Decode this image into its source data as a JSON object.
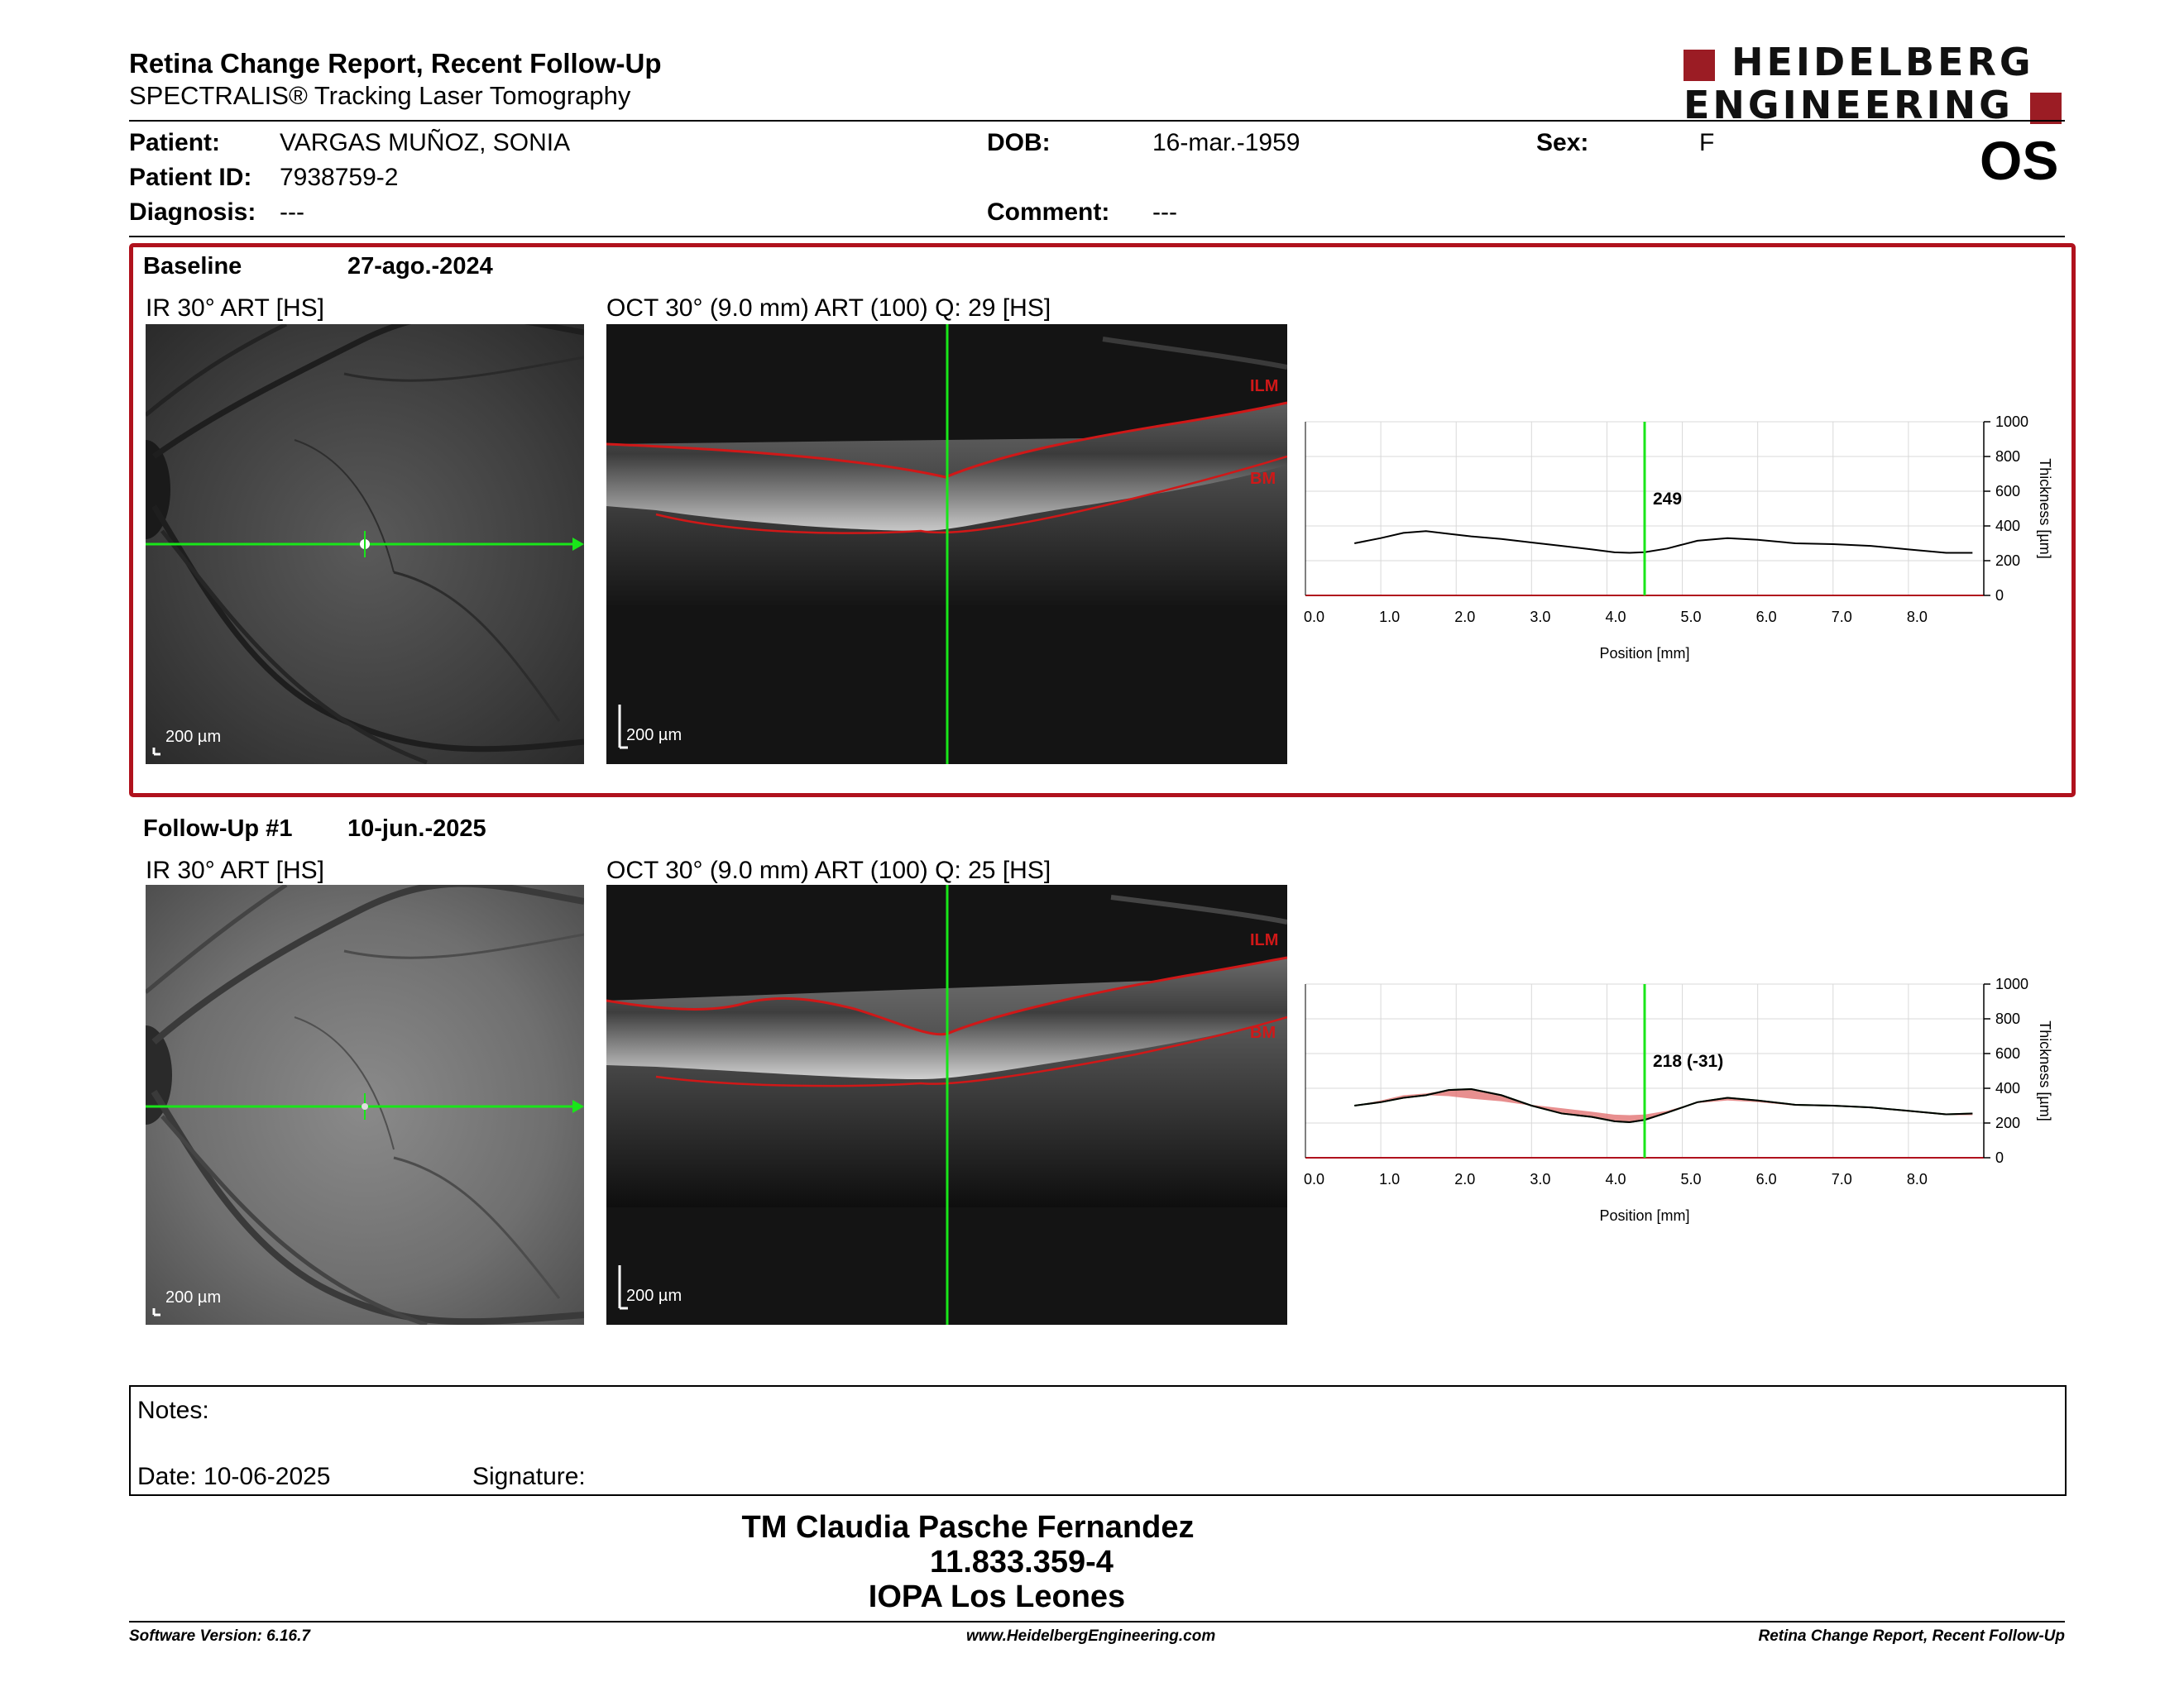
{
  "header": {
    "title": "Retina Change Report, Recent Follow-Up",
    "subtitle": "SPECTRALIS® Tracking Laser Tomography",
    "logo_line1": "HEIDELBERG",
    "logo_line2": "ENGINEERING",
    "eye": "OS"
  },
  "patient": {
    "patient_label": "Patient:",
    "patient_value": "VARGAS MUÑOZ, SONIA",
    "id_label": "Patient ID:",
    "id_value": "7938759-2",
    "diagnosis_label": "Diagnosis:",
    "diagnosis_value": "---",
    "dob_label": "DOB:",
    "dob_value": "16-mar.-1959",
    "comment_label": "Comment:",
    "comment_value": "---",
    "sex_label": "Sex:",
    "sex_value": "F"
  },
  "colors": {
    "accent_red": "#b0121d",
    "scan_green": "#19e619",
    "segmentation_red": "#d01818"
  },
  "baseline": {
    "label": "Baseline",
    "date": "27-ago.-2024",
    "ir_caption": "IR 30° ART [HS]",
    "oct_caption": "OCT 30° (9.0 mm) ART (100) Q: 29 [HS]",
    "ir_scale": "200 µm",
    "oct_scale": "200 µm",
    "ilm_label": "ILM",
    "bm_label": "BM",
    "marker_value": "249"
  },
  "followup": {
    "label": "Follow-Up #1",
    "date": "10-jun.-2025",
    "ir_caption": "IR 30° ART [HS]",
    "oct_caption": "OCT 30° (9.0 mm) ART (100) Q: 25 [HS]",
    "ir_scale": "200 µm",
    "oct_scale": "200 µm",
    "ilm_label": "ILM",
    "bm_label": "BM",
    "marker_value": "218 (-31)"
  },
  "chart_data": [
    {
      "type": "line",
      "xlabel": "Position [mm]",
      "ylabel": "Thickness [µm]",
      "xlim": [
        0,
        9
      ],
      "ylim": [
        0,
        1000
      ],
      "x_ticks": [
        "0.0",
        "1.0",
        "2.0",
        "3.0",
        "4.0",
        "5.0",
        "6.0",
        "7.0",
        "8.0"
      ],
      "y_ticks": [
        "0",
        "200",
        "400",
        "600",
        "800",
        "1000"
      ],
      "marker_x": 4.5,
      "marker_label": "249",
      "grid": true,
      "x": [
        0.65,
        1.0,
        1.3,
        1.6,
        1.9,
        2.2,
        2.6,
        3.0,
        3.4,
        3.8,
        4.1,
        4.3,
        4.5,
        4.8,
        5.2,
        5.6,
        6.0,
        6.5,
        7.0,
        7.5,
        8.0,
        8.5,
        8.85
      ],
      "series": [
        {
          "values": [
            300,
            330,
            360,
            370,
            355,
            340,
            325,
            305,
            285,
            265,
            248,
            245,
            249,
            270,
            315,
            330,
            320,
            300,
            295,
            285,
            265,
            245,
            245
          ]
        }
      ]
    },
    {
      "type": "area",
      "xlabel": "Position [mm]",
      "ylabel": "Thickness [µm]",
      "xlim": [
        0,
        9
      ],
      "ylim": [
        0,
        1000
      ],
      "x_ticks": [
        "0.0",
        "1.0",
        "2.0",
        "3.0",
        "4.0",
        "5.0",
        "6.0",
        "7.0",
        "8.0"
      ],
      "y_ticks": [
        "0",
        "200",
        "400",
        "600",
        "800",
        "1000"
      ],
      "marker_x": 4.5,
      "marker_label": "218 (-31)",
      "grid": true,
      "x": [
        0.65,
        1.0,
        1.3,
        1.6,
        1.9,
        2.2,
        2.6,
        3.0,
        3.4,
        3.8,
        4.1,
        4.3,
        4.5,
        4.8,
        5.2,
        5.6,
        6.0,
        6.5,
        7.0,
        7.5,
        8.0,
        8.5,
        8.85
      ],
      "series": [
        {
          "values": [
            300,
            330,
            360,
            370,
            355,
            340,
            325,
            305,
            285,
            265,
            248,
            245,
            249,
            270,
            315,
            330,
            320,
            300,
            295,
            285,
            265,
            245,
            245
          ]
        },
        {
          "values": [
            300,
            320,
            345,
            360,
            390,
            395,
            360,
            300,
            255,
            235,
            210,
            205,
            218,
            260,
            320,
            345,
            330,
            305,
            300,
            290,
            270,
            250,
            255
          ]
        }
      ]
    }
  ],
  "notes": {
    "notes_label": "Notes:",
    "date_label": "Date: 10-06-2025",
    "signature_label": "Signature:"
  },
  "signature_block": {
    "name": "TM Claudia Pasche Fernandez",
    "rut": "11.833.359-4",
    "place": "IOPA Los Leones"
  },
  "footer": {
    "software": "Software Version: 6.16.7",
    "website": "www.HeidelbergEngineering.com",
    "report": "Retina Change Report, Recent Follow-Up"
  }
}
